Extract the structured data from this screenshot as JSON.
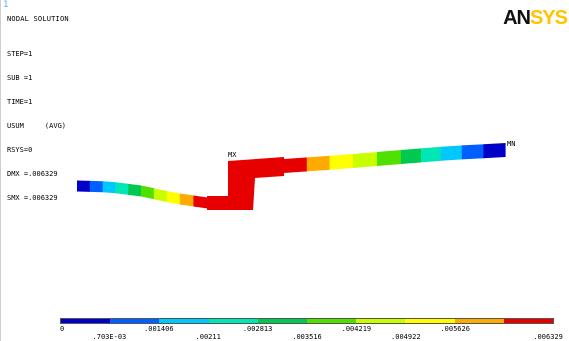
{
  "window_corner": "1",
  "header": {
    "title": "NODAL SOLUTION",
    "info_lines": [
      "STEP=1",
      "SUB =1",
      "TIME=1",
      "USUM     (AVG)",
      "RSYS=0",
      "DMX =.006329",
      "SMX =.006329"
    ]
  },
  "logo": {
    "part1": "AN",
    "part2": "SYS"
  },
  "labels": {
    "max": "MX",
    "min": "MN"
  },
  "legend": {
    "colors": [
      "#0000c8",
      "#0060ff",
      "#00c8ff",
      "#00e6b4",
      "#00c850",
      "#50e000",
      "#c8ff00",
      "#ffff00",
      "#ffaa00",
      "#e60000"
    ],
    "top_labels": [
      "0",
      ".001406",
      ".002813",
      ".004219",
      ".005626"
    ],
    "bottom_labels": [
      ".703E-03",
      ".00211",
      ".003516",
      ".004922",
      ".006329"
    ]
  },
  "model_colors": {
    "left_strip": [
      "#0000c8",
      "#0060ff",
      "#00c8ff",
      "#00e6b4",
      "#00c850",
      "#50e000",
      "#c8ff00",
      "#ffff00",
      "#ffaa00",
      "#e60000"
    ],
    "right_strip": [
      "#e60000",
      "#ffaa00",
      "#ffff00",
      "#c8ff00",
      "#50e000",
      "#00c850",
      "#00e6b4",
      "#00c8ff",
      "#0060ff",
      "#0000c8"
    ],
    "step": "#e60000"
  }
}
